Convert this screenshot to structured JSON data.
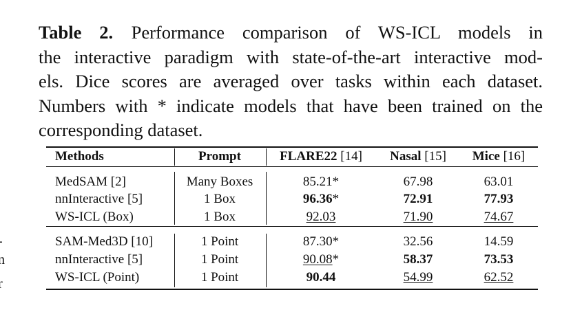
{
  "caption": {
    "label": "Table 2.",
    "lines": [
      "Performance comparison of WS-ICL models in",
      "the interactive paradigm with state-of-the-art interactive mod-",
      "els. Dice scores are averaged over tasks within each dataset.",
      "Numbers with * indicate models that have been trained on the",
      "corresponding dataset."
    ]
  },
  "margin_fragments": [
    "-",
    "n",
    "r"
  ],
  "table": {
    "header": [
      {
        "name": "Methods"
      },
      {
        "name": "Prompt"
      },
      {
        "name": "FLARE22",
        "ref": "[14]"
      },
      {
        "name": "Nasal",
        "ref": "[15]"
      },
      {
        "name": "Mice",
        "ref": "[16]"
      }
    ],
    "groups": [
      [
        [
          {
            "text": "MedSAM [2]"
          },
          {
            "text": "Many Boxes"
          },
          {
            "text": "85.21",
            "note": "*"
          },
          {
            "text": "67.98"
          },
          {
            "text": "63.01"
          }
        ],
        [
          {
            "text": "nnInteractive [5]"
          },
          {
            "text": "1 Box"
          },
          {
            "text": "96.36",
            "note": "*",
            "style": "bold"
          },
          {
            "text": "72.91",
            "style": "bold"
          },
          {
            "text": "77.93",
            "style": "bold"
          }
        ],
        [
          {
            "text": "WS-ICL (Box)"
          },
          {
            "text": "1 Box"
          },
          {
            "text": "92.03",
            "style": "underline"
          },
          {
            "text": "71.90",
            "style": "underline"
          },
          {
            "text": "74.67",
            "style": "underline"
          }
        ]
      ],
      [
        [
          {
            "text": "SAM-Med3D [10]"
          },
          {
            "text": "1 Point"
          },
          {
            "text": "87.30",
            "note": "*"
          },
          {
            "text": "32.56"
          },
          {
            "text": "14.59"
          }
        ],
        [
          {
            "text": "nnInteractive [5]"
          },
          {
            "text": "1 Point"
          },
          {
            "text": "90.08",
            "note": "*",
            "style": "underline"
          },
          {
            "text": "58.37",
            "style": "bold"
          },
          {
            "text": "73.53",
            "style": "bold"
          }
        ],
        [
          {
            "text": "WS-ICL (Point)"
          },
          {
            "text": "1 Point"
          },
          {
            "text": "90.44",
            "style": "bold"
          },
          {
            "text": "54.99",
            "style": "underline"
          },
          {
            "text": "62.52",
            "style": "underline"
          }
        ]
      ]
    ]
  }
}
